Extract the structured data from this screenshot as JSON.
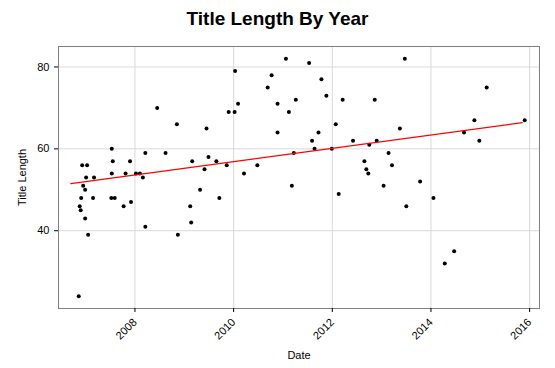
{
  "chart_data": {
    "type": "scatter",
    "title": "Title Length By Year",
    "x_label": "Date",
    "y_label": "Title Length",
    "x": [
      2006.86,
      2006.88,
      2006.9,
      2006.91,
      2006.93,
      2006.95,
      2006.99,
      2007.03,
      2007.01,
      2006.99,
      2007.05,
      2007.17,
      2007.15,
      2007.53,
      2007.55,
      2007.53,
      2007.52,
      2007.59,
      2007.77,
      2007.81,
      2007.9,
      2007.92,
      2008.02,
      2008.1,
      2008.16,
      2008.21,
      2008.21,
      2008.45,
      2008.62,
      2008.85,
      2008.87,
      2009.12,
      2009.14,
      2009.16,
      2009.32,
      2009.41,
      2009.45,
      2009.49,
      2009.65,
      2009.71,
      2009.86,
      2009.9,
      2010.02,
      2010.03,
      2010.09,
      2010.21,
      2010.48,
      2010.69,
      2010.77,
      2010.89,
      2010.89,
      2011.06,
      2011.12,
      2011.18,
      2011.22,
      2011.26,
      2011.53,
      2011.59,
      2011.64,
      2011.72,
      2011.78,
      2011.88,
      2011.99,
      2012.07,
      2012.13,
      2012.21,
      2012.42,
      2012.65,
      2012.69,
      2012.73,
      2012.75,
      2012.86,
      2012.9,
      2013.04,
      2013.14,
      2013.21,
      2013.37,
      2013.47,
      2013.5,
      2013.78,
      2014.05,
      2014.28,
      2014.47,
      2014.67,
      2014.88,
      2014.98,
      2015.13,
      2015.9
    ],
    "values": [
      24,
      46,
      45,
      48,
      56,
      51,
      50,
      56,
      53,
      43,
      39,
      53,
      48,
      60,
      57,
      54,
      48,
      48,
      46,
      54,
      57,
      47,
      54,
      54,
      53,
      59,
      41,
      70,
      59,
      66,
      39,
      46,
      42,
      57,
      50,
      55,
      65,
      58,
      57,
      48,
      56,
      69,
      69,
      79,
      71,
      54,
      56,
      75,
      78,
      71,
      64,
      82,
      69,
      51,
      59,
      72,
      81,
      62,
      60,
      64,
      77,
      73,
      60,
      66,
      49,
      72,
      62,
      57,
      55,
      54,
      61,
      72,
      62,
      51,
      59,
      56,
      65,
      82,
      46,
      52,
      48,
      32,
      35,
      64,
      67,
      62,
      75,
      67
    ],
    "color": "#000000",
    "trend_line": {
      "x": [
        2006.7,
        2015.85
      ],
      "values": [
        51.5,
        66.4
      ],
      "color": "#ff0000"
    },
    "xlim": [
      2006.45,
      2016.2
    ],
    "xticks": [
      2008,
      2010,
      2012,
      2014,
      2016
    ],
    "ylim": [
      21,
      85
    ],
    "yticks": [
      40,
      60,
      80
    ],
    "grid": true
  }
}
